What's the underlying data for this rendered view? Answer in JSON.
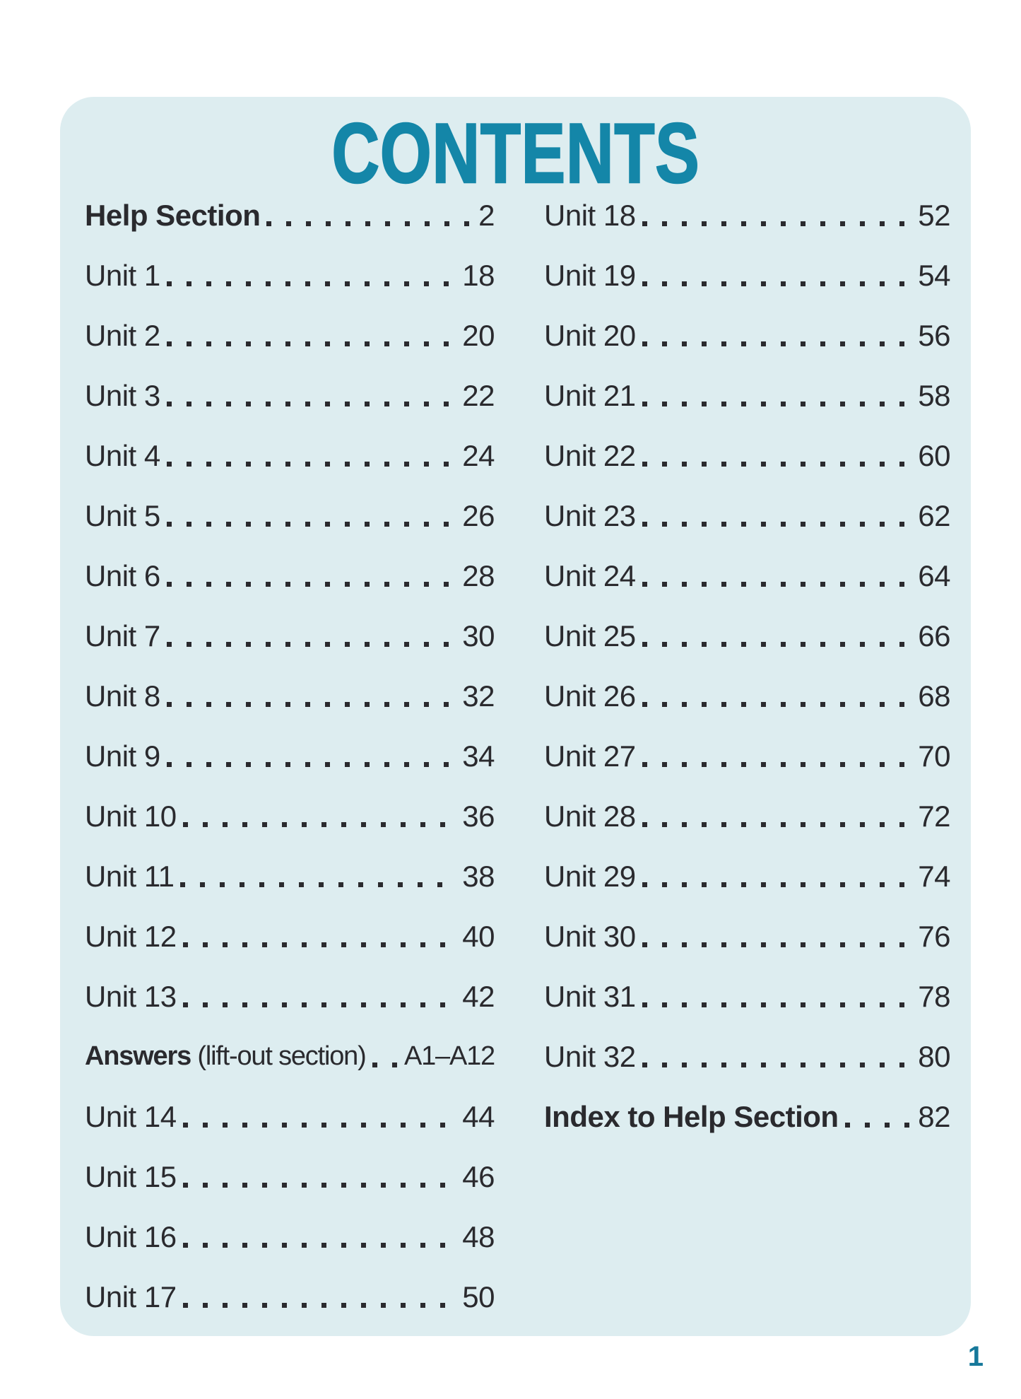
{
  "page": {
    "title": "CONTENTS",
    "page_number": "1"
  },
  "colors": {
    "accent": "#1486a8",
    "panel_bg": "#ddedf0",
    "text": "#2a2a2e",
    "folio": "#16789a"
  },
  "toc": {
    "left_column": [
      {
        "bold": "Help Section",
        "text": "",
        "page": "2"
      },
      {
        "text": "Unit 1",
        "page": "18"
      },
      {
        "text": "Unit 2",
        "page": "20"
      },
      {
        "text": "Unit 3",
        "page": "22"
      },
      {
        "text": "Unit 4",
        "page": "24"
      },
      {
        "text": "Unit 5",
        "page": "26"
      },
      {
        "text": "Unit 6",
        "page": "28"
      },
      {
        "text": "Unit 7",
        "page": "30"
      },
      {
        "text": "Unit 8",
        "page": "32"
      },
      {
        "text": "Unit 9",
        "page": "34"
      },
      {
        "text": "Unit 10",
        "page": "36"
      },
      {
        "text": "Unit 11",
        "page": "38"
      },
      {
        "text": "Unit 12",
        "page": "40"
      },
      {
        "text": "Unit 13",
        "page": "42"
      },
      {
        "bold": "Answers",
        "text": " (lift-out section)",
        "page": "A1–A12",
        "compact": true
      },
      {
        "text": "Unit 14",
        "page": "44"
      },
      {
        "text": "Unit 15",
        "page": "46"
      },
      {
        "text": "Unit 16",
        "page": "48"
      },
      {
        "text": "Unit 17",
        "page": "50"
      }
    ],
    "right_column": [
      {
        "text": "Unit 18",
        "page": "52"
      },
      {
        "text": "Unit 19",
        "page": "54"
      },
      {
        "text": "Unit 20",
        "page": "56"
      },
      {
        "text": "Unit 21",
        "page": "58"
      },
      {
        "text": "Unit 22",
        "page": "60"
      },
      {
        "text": "Unit 23",
        "page": "62"
      },
      {
        "text": "Unit 24",
        "page": "64"
      },
      {
        "text": "Unit 25",
        "page": "66"
      },
      {
        "text": "Unit 26",
        "page": "68"
      },
      {
        "text": "Unit 27",
        "page": "70"
      },
      {
        "text": "Unit 28",
        "page": "72"
      },
      {
        "text": "Unit 29",
        "page": "74"
      },
      {
        "text": "Unit 30",
        "page": "76"
      },
      {
        "text": "Unit 31",
        "page": "78"
      },
      {
        "text": "Unit 32",
        "page": "80"
      },
      {
        "bold": "Index to Help Section",
        "text": "",
        "page": "82"
      }
    ]
  }
}
